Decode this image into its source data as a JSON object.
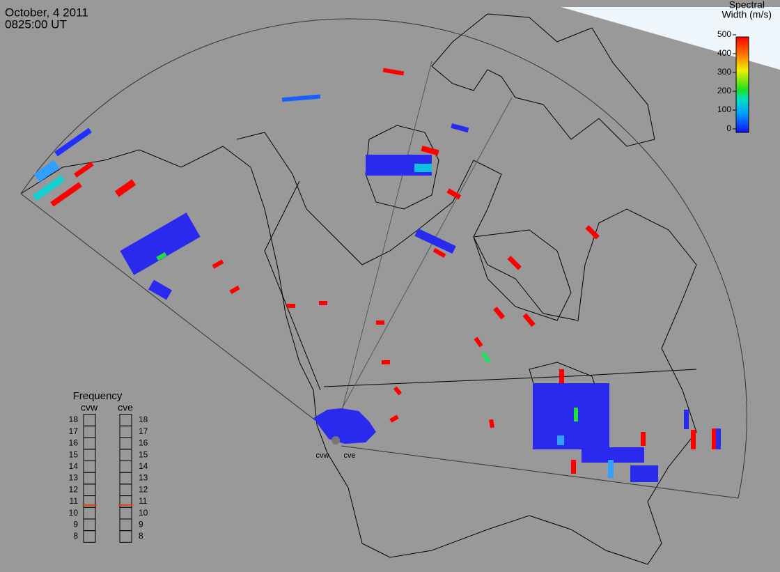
{
  "header": {
    "date": "October, 4 2011",
    "time": "0825:00 UT"
  },
  "colorbar": {
    "title_line1": "Spectral",
    "title_line2": "Width (m/s)",
    "lim": [
      0,
      500
    ],
    "ticks": [
      0,
      100,
      200,
      300,
      400,
      500
    ]
  },
  "frequency": {
    "title": "Frequency",
    "lim": [
      8,
      18
    ],
    "ticks": [
      8,
      9,
      10,
      11,
      12,
      13,
      14,
      15,
      16,
      17,
      18
    ],
    "radars": [
      {
        "name": "cvw",
        "value": 10.7
      },
      {
        "name": "cve",
        "value": 10.7
      }
    ]
  },
  "stations": [
    "cvw",
    "cve"
  ]
}
